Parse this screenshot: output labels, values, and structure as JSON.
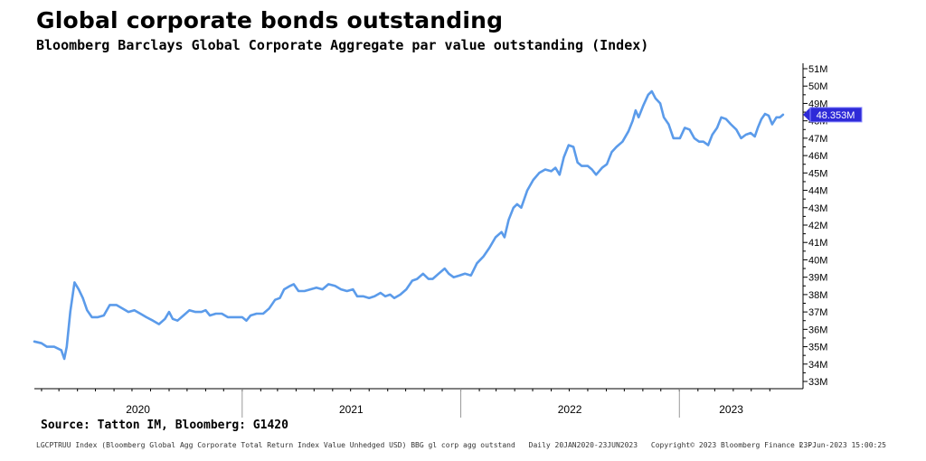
{
  "header": {
    "title": "Global corporate bonds outstanding",
    "subtitle": "Bloomberg Barclays Global Corporate Aggregate par value outstanding (Index)"
  },
  "chart_data": {
    "type": "line",
    "title": "Global corporate bonds outstanding",
    "subtitle": "Bloomberg Barclays Global Corporate Aggregate par value outstanding (Index)",
    "xlabel": "",
    "ylabel": "",
    "x_range": [
      "2020-01-20",
      "2023-06-23"
    ],
    "ylim": [
      33,
      51
    ],
    "y_ticks": [
      33,
      34,
      35,
      36,
      37,
      38,
      39,
      40,
      41,
      42,
      43,
      44,
      45,
      46,
      47,
      48,
      49,
      50,
      51
    ],
    "y_tick_labels": [
      "33M",
      "34M",
      "35M",
      "36M",
      "37M",
      "38M",
      "39M",
      "40M",
      "41M",
      "42M",
      "43M",
      "44M",
      "45M",
      "46M",
      "47M",
      "48M",
      "49M",
      "50M",
      "51M"
    ],
    "x_year_labels": [
      {
        "label": "2020",
        "start": "2020-01-01",
        "end": "2020-12-31"
      },
      {
        "label": "2021",
        "start": "2021-01-01",
        "end": "2021-12-31"
      },
      {
        "label": "2022",
        "start": "2022-01-01",
        "end": "2022-12-31"
      },
      {
        "label": "2023",
        "start": "2023-01-01",
        "end": "2023-06-23"
      }
    ],
    "grid": false,
    "line_color": "#5b9bea",
    "last_value_label": "48.353M",
    "last_value": 48.353,
    "series": [
      {
        "values": [
          {
            "x": "2020-01-20",
            "y": 35.3
          },
          {
            "x": "2020-02-01",
            "y": 35.2
          },
          {
            "x": "2020-02-10",
            "y": 35.0
          },
          {
            "x": "2020-02-22",
            "y": 35.0
          },
          {
            "x": "2020-03-05",
            "y": 34.8
          },
          {
            "x": "2020-03-10",
            "y": 34.3
          },
          {
            "x": "2020-03-14",
            "y": 35.0
          },
          {
            "x": "2020-03-20",
            "y": 37.0
          },
          {
            "x": "2020-03-27",
            "y": 38.7
          },
          {
            "x": "2020-04-03",
            "y": 38.3
          },
          {
            "x": "2020-04-10",
            "y": 37.8
          },
          {
            "x": "2020-04-17",
            "y": 37.1
          },
          {
            "x": "2020-04-25",
            "y": 36.7
          },
          {
            "x": "2020-05-05",
            "y": 36.7
          },
          {
            "x": "2020-05-15",
            "y": 36.8
          },
          {
            "x": "2020-05-25",
            "y": 37.4
          },
          {
            "x": "2020-06-05",
            "y": 37.4
          },
          {
            "x": "2020-06-15",
            "y": 37.2
          },
          {
            "x": "2020-06-25",
            "y": 37.0
          },
          {
            "x": "2020-07-05",
            "y": 37.1
          },
          {
            "x": "2020-07-15",
            "y": 36.9
          },
          {
            "x": "2020-07-25",
            "y": 36.7
          },
          {
            "x": "2020-08-05",
            "y": 36.5
          },
          {
            "x": "2020-08-15",
            "y": 36.3
          },
          {
            "x": "2020-08-25",
            "y": 36.6
          },
          {
            "x": "2020-09-01",
            "y": 37.0
          },
          {
            "x": "2020-09-07",
            "y": 36.6
          },
          {
            "x": "2020-09-15",
            "y": 36.5
          },
          {
            "x": "2020-09-25",
            "y": 36.8
          },
          {
            "x": "2020-10-05",
            "y": 37.1
          },
          {
            "x": "2020-10-15",
            "y": 37.0
          },
          {
            "x": "2020-10-25",
            "y": 37.0
          },
          {
            "x": "2020-11-01",
            "y": 37.1
          },
          {
            "x": "2020-11-08",
            "y": 36.8
          },
          {
            "x": "2020-11-18",
            "y": 36.9
          },
          {
            "x": "2020-11-28",
            "y": 36.9
          },
          {
            "x": "2020-12-08",
            "y": 36.7
          },
          {
            "x": "2020-12-20",
            "y": 36.7
          },
          {
            "x": "2021-01-01",
            "y": 36.7
          },
          {
            "x": "2021-01-08",
            "y": 36.5
          },
          {
            "x": "2021-01-15",
            "y": 36.8
          },
          {
            "x": "2021-01-25",
            "y": 36.9
          },
          {
            "x": "2021-02-05",
            "y": 36.9
          },
          {
            "x": "2021-02-15",
            "y": 37.2
          },
          {
            "x": "2021-02-25",
            "y": 37.7
          },
          {
            "x": "2021-03-05",
            "y": 37.8
          },
          {
            "x": "2021-03-12",
            "y": 38.3
          },
          {
            "x": "2021-03-22",
            "y": 38.5
          },
          {
            "x": "2021-03-28",
            "y": 38.6
          },
          {
            "x": "2021-04-05",
            "y": 38.2
          },
          {
            "x": "2021-04-15",
            "y": 38.2
          },
          {
            "x": "2021-04-25",
            "y": 38.3
          },
          {
            "x": "2021-05-05",
            "y": 38.4
          },
          {
            "x": "2021-05-15",
            "y": 38.3
          },
          {
            "x": "2021-05-25",
            "y": 38.6
          },
          {
            "x": "2021-06-05",
            "y": 38.5
          },
          {
            "x": "2021-06-15",
            "y": 38.3
          },
          {
            "x": "2021-06-25",
            "y": 38.2
          },
          {
            "x": "2021-07-05",
            "y": 38.3
          },
          {
            "x": "2021-07-12",
            "y": 37.9
          },
          {
            "x": "2021-07-22",
            "y": 37.9
          },
          {
            "x": "2021-08-01",
            "y": 37.8
          },
          {
            "x": "2021-08-10",
            "y": 37.9
          },
          {
            "x": "2021-08-20",
            "y": 38.1
          },
          {
            "x": "2021-08-28",
            "y": 37.9
          },
          {
            "x": "2021-09-05",
            "y": 38.0
          },
          {
            "x": "2021-09-12",
            "y": 37.8
          },
          {
            "x": "2021-09-22",
            "y": 38.0
          },
          {
            "x": "2021-10-02",
            "y": 38.3
          },
          {
            "x": "2021-10-12",
            "y": 38.8
          },
          {
            "x": "2021-10-20",
            "y": 38.9
          },
          {
            "x": "2021-10-30",
            "y": 39.2
          },
          {
            "x": "2021-11-08",
            "y": 38.9
          },
          {
            "x": "2021-11-15",
            "y": 38.9
          },
          {
            "x": "2021-11-25",
            "y": 39.2
          },
          {
            "x": "2021-12-05",
            "y": 39.5
          },
          {
            "x": "2021-12-12",
            "y": 39.2
          },
          {
            "x": "2021-12-20",
            "y": 39.0
          },
          {
            "x": "2021-12-30",
            "y": 39.1
          },
          {
            "x": "2022-01-08",
            "y": 39.2
          },
          {
            "x": "2022-01-18",
            "y": 39.1
          },
          {
            "x": "2022-01-28",
            "y": 39.8
          },
          {
            "x": "2022-02-08",
            "y": 40.2
          },
          {
            "x": "2022-02-18",
            "y": 40.7
          },
          {
            "x": "2022-02-28",
            "y": 41.3
          },
          {
            "x": "2022-03-10",
            "y": 41.6
          },
          {
            "x": "2022-03-15",
            "y": 41.3
          },
          {
            "x": "2022-03-22",
            "y": 42.3
          },
          {
            "x": "2022-03-30",
            "y": 43.0
          },
          {
            "x": "2022-04-05",
            "y": 43.2
          },
          {
            "x": "2022-04-12",
            "y": 43.0
          },
          {
            "x": "2022-04-22",
            "y": 44.0
          },
          {
            "x": "2022-05-02",
            "y": 44.6
          },
          {
            "x": "2022-05-12",
            "y": 45.0
          },
          {
            "x": "2022-05-22",
            "y": 45.2
          },
          {
            "x": "2022-06-01",
            "y": 45.1
          },
          {
            "x": "2022-06-08",
            "y": 45.3
          },
          {
            "x": "2022-06-15",
            "y": 44.9
          },
          {
            "x": "2022-06-22",
            "y": 45.9
          },
          {
            "x": "2022-06-30",
            "y": 46.6
          },
          {
            "x": "2022-07-08",
            "y": 46.5
          },
          {
            "x": "2022-07-15",
            "y": 45.6
          },
          {
            "x": "2022-07-22",
            "y": 45.4
          },
          {
            "x": "2022-08-01",
            "y": 45.4
          },
          {
            "x": "2022-08-08",
            "y": 45.2
          },
          {
            "x": "2022-08-15",
            "y": 44.9
          },
          {
            "x": "2022-08-25",
            "y": 45.3
          },
          {
            "x": "2022-09-02",
            "y": 45.5
          },
          {
            "x": "2022-09-10",
            "y": 46.2
          },
          {
            "x": "2022-09-18",
            "y": 46.5
          },
          {
            "x": "2022-09-28",
            "y": 46.8
          },
          {
            "x": "2022-10-08",
            "y": 47.4
          },
          {
            "x": "2022-10-15",
            "y": 48.0
          },
          {
            "x": "2022-10-20",
            "y": 48.6
          },
          {
            "x": "2022-10-25",
            "y": 48.2
          },
          {
            "x": "2022-11-02",
            "y": 48.9
          },
          {
            "x": "2022-11-10",
            "y": 49.5
          },
          {
            "x": "2022-11-16",
            "y": 49.7
          },
          {
            "x": "2022-11-22",
            "y": 49.3
          },
          {
            "x": "2022-11-30",
            "y": 49.0
          },
          {
            "x": "2022-12-06",
            "y": 48.2
          },
          {
            "x": "2022-12-14",
            "y": 47.8
          },
          {
            "x": "2022-12-22",
            "y": 47.0
          },
          {
            "x": "2023-01-02",
            "y": 47.0
          },
          {
            "x": "2023-01-10",
            "y": 47.6
          },
          {
            "x": "2023-01-18",
            "y": 47.5
          },
          {
            "x": "2023-01-26",
            "y": 47.0
          },
          {
            "x": "2023-02-03",
            "y": 46.8
          },
          {
            "x": "2023-02-10",
            "y": 46.8
          },
          {
            "x": "2023-02-18",
            "y": 46.6
          },
          {
            "x": "2023-02-25",
            "y": 47.2
          },
          {
            "x": "2023-03-05",
            "y": 47.6
          },
          {
            "x": "2023-03-12",
            "y": 48.2
          },
          {
            "x": "2023-03-20",
            "y": 48.1
          },
          {
            "x": "2023-03-28",
            "y": 47.8
          },
          {
            "x": "2023-04-06",
            "y": 47.5
          },
          {
            "x": "2023-04-14",
            "y": 47.0
          },
          {
            "x": "2023-04-22",
            "y": 47.2
          },
          {
            "x": "2023-04-30",
            "y": 47.3
          },
          {
            "x": "2023-05-07",
            "y": 47.1
          },
          {
            "x": "2023-05-12",
            "y": 47.6
          },
          {
            "x": "2023-05-18",
            "y": 48.1
          },
          {
            "x": "2023-05-24",
            "y": 48.4
          },
          {
            "x": "2023-05-30",
            "y": 48.3
          },
          {
            "x": "2023-06-05",
            "y": 47.8
          },
          {
            "x": "2023-06-12",
            "y": 48.2
          },
          {
            "x": "2023-06-18",
            "y": 48.2
          },
          {
            "x": "2023-06-23",
            "y": 48.353
          }
        ]
      }
    ]
  },
  "source": "Source: Tatton IM, Bloomberg: G1420",
  "footer": {
    "ticker": "LGCPTRUU Index (Bloomberg Global Agg Corporate Total Return Index Value Unhedged USD) BBG gl corp agg outstand",
    "range": "Daily 20JAN2020-23JUN2023",
    "copyright": "Copyright© 2023 Bloomberg Finance L.P.",
    "timestamp": "23-Jun-2023 15:00:25"
  }
}
